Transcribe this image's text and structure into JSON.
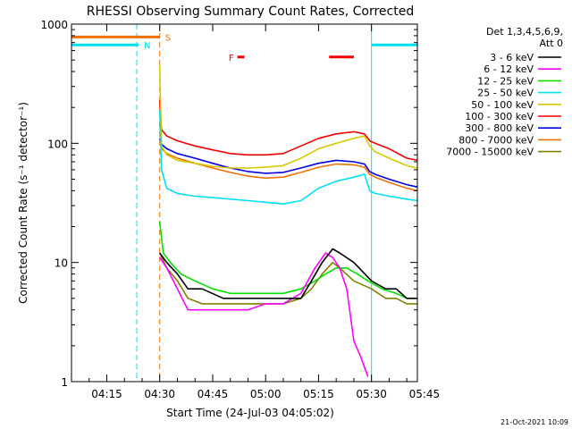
{
  "colors": {
    "bg": "#ffffff",
    "axes": "#000000",
    "orange": "#f07000",
    "cyan": "#00e0f0",
    "red": "#f00000",
    "text": "#000000"
  },
  "chart_data": {
    "type": "line",
    "title": "RHESSI Observing Summary Count Rates, Corrected",
    "xlabel": "Start Time (24-Jul-03 04:05:02)",
    "ylabel": "Corrected Count Rate (s⁻¹ detector⁻¹)",
    "y_scale": "log",
    "ylim": [
      1,
      1000
    ],
    "x_unit": "minutes after 04:05:02",
    "xlim": [
      0,
      98
    ],
    "x_ticks": [
      {
        "label": "04:15",
        "value": 10
      },
      {
        "label": "04:30",
        "value": 25
      },
      {
        "label": "04:45",
        "value": 40
      },
      {
        "label": "05:00",
        "value": 55
      },
      {
        "label": "05:15",
        "value": 70
      },
      {
        "label": "05:30",
        "value": 85
      },
      {
        "label": "05:45",
        "value": 100
      }
    ],
    "y_ticks": [
      {
        "label": "1",
        "value": 1
      },
      {
        "label": "10",
        "value": 10
      },
      {
        "label": "100",
        "value": 100
      },
      {
        "label": "1000",
        "value": 1000
      }
    ],
    "legend": {
      "header": [
        "Det 1,3,4,5,6,9,",
        "Att 0"
      ],
      "position": "top-right"
    },
    "series": [
      {
        "name": "3 - 6 keV",
        "color": "#000000",
        "x": [
          25,
          27,
          30,
          33,
          37,
          43,
          50,
          55,
          60,
          65,
          68,
          71,
          74,
          76,
          80,
          85,
          89,
          92,
          95,
          97,
          98
        ],
        "y": [
          12,
          10,
          8,
          6,
          6,
          5,
          5,
          5,
          5,
          5,
          7,
          10,
          13,
          12,
          10,
          7,
          6,
          6,
          5,
          5,
          5
        ]
      },
      {
        "name": "6 - 12 keV",
        "color": "#ff00ff",
        "x": [
          25,
          27,
          30,
          33,
          36,
          40,
          45,
          50,
          55,
          60,
          65,
          69,
          72,
          74,
          76,
          78,
          80,
          82,
          84
        ],
        "y": [
          11,
          9,
          6,
          4,
          4,
          4,
          4,
          4,
          4.5,
          4.5,
          5.5,
          9,
          12,
          11,
          9,
          6,
          2.2,
          1.6,
          1.1
        ]
      },
      {
        "name": "12 - 25 keV",
        "color": "#00e000",
        "x": [
          25,
          26,
          28,
          31,
          35,
          40,
          45,
          50,
          55,
          60,
          65,
          69,
          72,
          75,
          78,
          81,
          84,
          88,
          92,
          95,
          98
        ],
        "y": [
          22,
          12,
          10,
          8,
          7,
          6,
          5.5,
          5.5,
          5.5,
          5.5,
          6,
          7,
          8,
          9,
          9,
          8,
          7,
          6,
          5.5,
          5,
          5
        ]
      },
      {
        "name": "25 - 50 keV",
        "color": "#00e0f0",
        "x": [
          25,
          25.5,
          27,
          30,
          35,
          40,
          45,
          50,
          55,
          60,
          65,
          70,
          75,
          80,
          83,
          84.5,
          86,
          90,
          95,
          98
        ],
        "y": [
          190,
          60,
          42,
          38,
          36,
          35,
          34,
          33,
          32,
          31,
          33,
          42,
          48,
          52,
          55,
          40,
          38,
          36,
          34,
          33
        ]
      },
      {
        "name": "50 - 100 keV",
        "color": "#d8c800",
        "x": [
          25,
          25.5,
          27,
          30,
          35,
          40,
          45,
          50,
          55,
          60,
          65,
          70,
          75,
          80,
          83,
          84.5,
          86,
          90,
          95,
          98
        ],
        "y": [
          450,
          95,
          80,
          72,
          68,
          64,
          62,
          62,
          63,
          65,
          75,
          90,
          100,
          110,
          115,
          95,
          85,
          75,
          65,
          62
        ]
      },
      {
        "name": "100 - 300 keV",
        "color": "#f00000",
        "x": [
          25,
          25.5,
          27,
          30,
          35,
          40,
          45,
          50,
          55,
          60,
          65,
          70,
          75,
          80,
          83,
          84.5,
          86,
          90,
          95,
          98
        ],
        "y": [
          230,
          130,
          115,
          105,
          95,
          88,
          82,
          80,
          80,
          82,
          95,
          110,
          120,
          125,
          120,
          105,
          100,
          90,
          75,
          72
        ]
      },
      {
        "name": "300 - 800 keV",
        "color": "#0000e0",
        "x": [
          25,
          25.5,
          27,
          30,
          35,
          40,
          45,
          50,
          55,
          60,
          65,
          70,
          75,
          80,
          83,
          84.5,
          86,
          90,
          95,
          98
        ],
        "y": [
          110,
          98,
          90,
          82,
          75,
          68,
          62,
          58,
          56,
          57,
          62,
          68,
          72,
          70,
          67,
          58,
          55,
          50,
          45,
          43
        ]
      },
      {
        "name": "800 - 7000 keV",
        "color": "#f07000",
        "x": [
          25,
          25.5,
          27,
          30,
          35,
          40,
          45,
          50,
          55,
          60,
          65,
          70,
          75,
          80,
          83,
          84.5,
          86,
          90,
          95,
          98
        ],
        "y": [
          150,
          90,
          82,
          75,
          68,
          62,
          57,
          53,
          51,
          52,
          57,
          63,
          67,
          66,
          63,
          55,
          52,
          47,
          42,
          40
        ]
      },
      {
        "name": "7000 - 15000 keV",
        "color": "#808000",
        "x": [
          25,
          27,
          30,
          33,
          37,
          43,
          50,
          55,
          60,
          65,
          68,
          71,
          74,
          76,
          80,
          85,
          89,
          92,
          95,
          98
        ],
        "y": [
          12,
          9,
          7,
          5,
          4.5,
          4.5,
          4.5,
          4.5,
          4.5,
          5,
          6,
          8,
          10,
          9,
          7,
          6,
          5,
          5,
          4.5,
          4.5
        ]
      }
    ],
    "flag_bars": [
      {
        "label": "S",
        "color": "#f07000",
        "level": 780,
        "x_start": 0,
        "x_end": 25
      },
      {
        "label": "N",
        "color": "#00e0f0",
        "level": 670,
        "x_start": 0,
        "x_end": 19
      },
      {
        "label": "",
        "color": "#00e0f0",
        "level": 670,
        "x_start": 85,
        "x_end": 98
      },
      {
        "label": "F",
        "color": "#f00000",
        "level": 530,
        "x_start": 47,
        "x_end": 49
      },
      {
        "label": "",
        "color": "#f00000",
        "level": 530,
        "x_start": 73,
        "x_end": 80
      }
    ],
    "vertical_lines": [
      {
        "x": 0,
        "color": "#00e0f0",
        "style": "solid"
      },
      {
        "x": 18.5,
        "color": "#00e0f0",
        "style": "dashed"
      },
      {
        "x": 25,
        "color": "#f07000",
        "style": "dashed"
      },
      {
        "x": 85,
        "color": "#00e0f0",
        "style": "solid"
      },
      {
        "x": 98,
        "color": "#00e0f0",
        "style": "dashed"
      }
    ],
    "grid": false
  },
  "footer": {
    "date_stamp": "21-Oct-2021 10:09"
  }
}
